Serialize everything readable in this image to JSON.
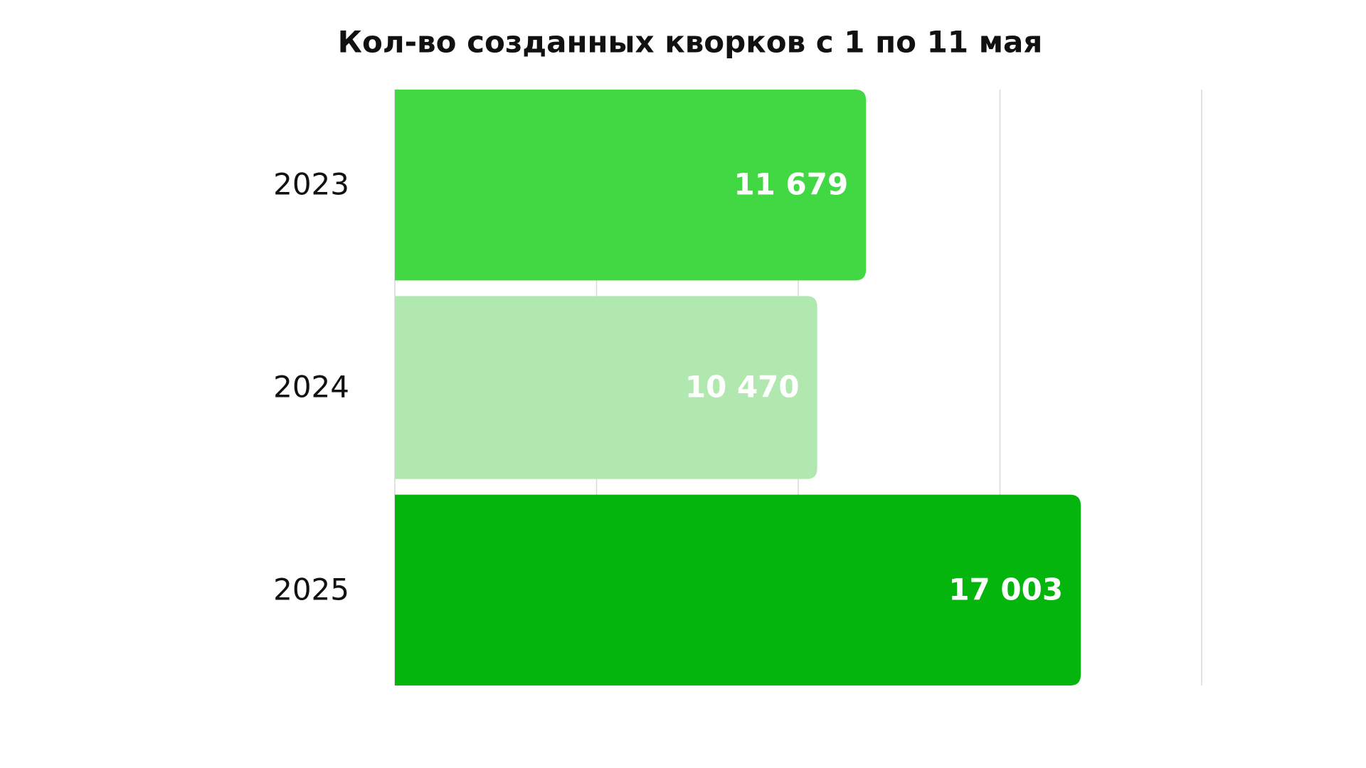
{
  "chart_data": {
    "type": "barh",
    "title": "Кол-во созданных кворков с 1 по 11 мая",
    "categories": [
      "2023",
      "2024",
      "2025"
    ],
    "values": [
      11679,
      10470,
      17003
    ],
    "value_labels": [
      "11 679",
      "10 470",
      "17 003"
    ],
    "colors": [
      "#42d844",
      "#b0e8b0",
      "#04b50e"
    ],
    "xlim": [
      0,
      20000
    ],
    "xticks": [
      0,
      5000,
      10000,
      15000,
      20000
    ],
    "grid": true
  }
}
